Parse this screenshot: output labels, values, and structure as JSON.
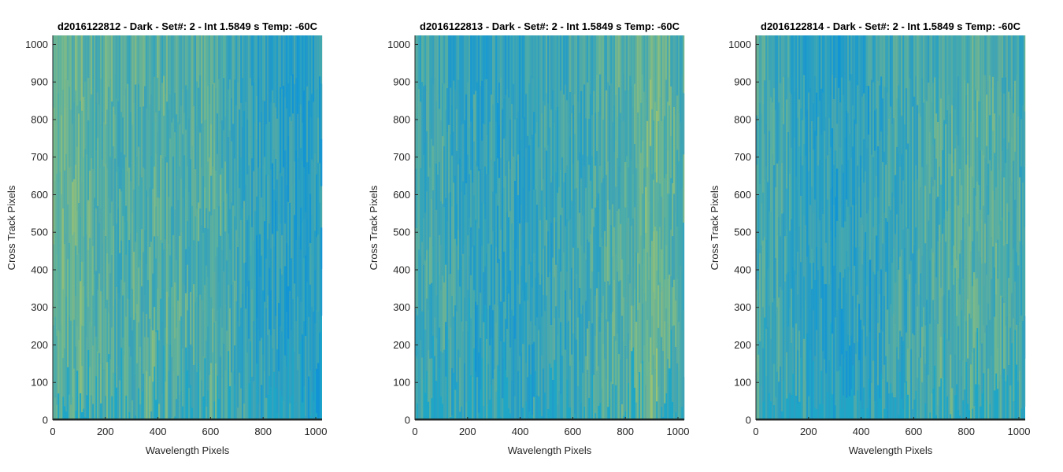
{
  "colors": {
    "base": "#1fa6c7",
    "cool": "#0e8fd9",
    "warm": "#b9c95e",
    "axis": "#262626",
    "bottom_row": "#1b2a2a"
  },
  "chart_data": [
    {
      "type": "heatmap",
      "title": "d2016122812 - Dark - Set#: 2 - Int 1.5849 s Temp: -60C",
      "xlabel": "Wavelength Pixels",
      "ylabel": "Cross Track Pixels",
      "xlim": [
        0,
        1024
      ],
      "ylim": [
        0,
        1024
      ],
      "xticks": [
        0,
        200,
        400,
        600,
        800,
        1000
      ],
      "yticks": [
        0,
        100,
        200,
        300,
        400,
        500,
        600,
        700,
        800,
        900,
        1000
      ],
      "xtick_labels": [
        "0",
        "200",
        "400",
        "600",
        "800",
        "1000"
      ],
      "ytick_labels": [
        "0",
        "100",
        "200",
        "300",
        "400",
        "500",
        "600",
        "700",
        "800",
        "900",
        "1000"
      ],
      "column_profile": {
        "x": [
          0,
          100,
          200,
          300,
          400,
          500,
          600,
          700,
          800,
          900,
          1000,
          1024
        ],
        "intensity": [
          0.75,
          0.7,
          0.55,
          0.55,
          0.6,
          0.5,
          0.6,
          0.4,
          0.25,
          0.2,
          0.2,
          0.3
        ]
      }
    },
    {
      "type": "heatmap",
      "title": "d2016122813 - Dark - Set#: 2 - Int 1.5849 s Temp: -60C",
      "xlabel": "Wavelength Pixels",
      "ylabel": "Cross Track Pixels",
      "xlim": [
        0,
        1024
      ],
      "ylim": [
        0,
        1024
      ],
      "xticks": [
        0,
        200,
        400,
        600,
        800,
        1000
      ],
      "yticks": [
        0,
        100,
        200,
        300,
        400,
        500,
        600,
        700,
        800,
        900,
        1000
      ],
      "xtick_labels": [
        "0",
        "200",
        "400",
        "600",
        "800",
        "1000"
      ],
      "ytick_labels": [
        "0",
        "100",
        "200",
        "300",
        "400",
        "500",
        "600",
        "700",
        "800",
        "900",
        "1000"
      ],
      "column_profile": {
        "x": [
          0,
          100,
          200,
          300,
          400,
          500,
          600,
          700,
          800,
          900,
          1000,
          1024
        ],
        "intensity": [
          0.45,
          0.4,
          0.3,
          0.3,
          0.3,
          0.35,
          0.4,
          0.5,
          0.6,
          0.75,
          0.6,
          0.5
        ]
      }
    },
    {
      "type": "heatmap",
      "title": "d2016122814 - Dark - Set#: 2 - Int 1.5849 s Temp: -60C",
      "xlabel": "Wavelength Pixels",
      "ylabel": "Cross Track Pixels",
      "xlim": [
        0,
        1024
      ],
      "ylim": [
        0,
        1024
      ],
      "xticks": [
        0,
        200,
        400,
        600,
        800,
        1000
      ],
      "yticks": [
        0,
        100,
        200,
        300,
        400,
        500,
        600,
        700,
        800,
        900,
        1000
      ],
      "xtick_labels": [
        "0",
        "200",
        "400",
        "600",
        "800",
        "1000"
      ],
      "ytick_labels": [
        "0",
        "100",
        "200",
        "300",
        "400",
        "500",
        "600",
        "700",
        "800",
        "900",
        "1000"
      ],
      "column_profile": {
        "x": [
          0,
          100,
          200,
          300,
          400,
          500,
          600,
          700,
          800,
          900,
          1000,
          1024
        ],
        "intensity": [
          0.5,
          0.4,
          0.3,
          0.2,
          0.25,
          0.35,
          0.45,
          0.5,
          0.6,
          0.55,
          0.5,
          0.45
        ]
      }
    }
  ]
}
